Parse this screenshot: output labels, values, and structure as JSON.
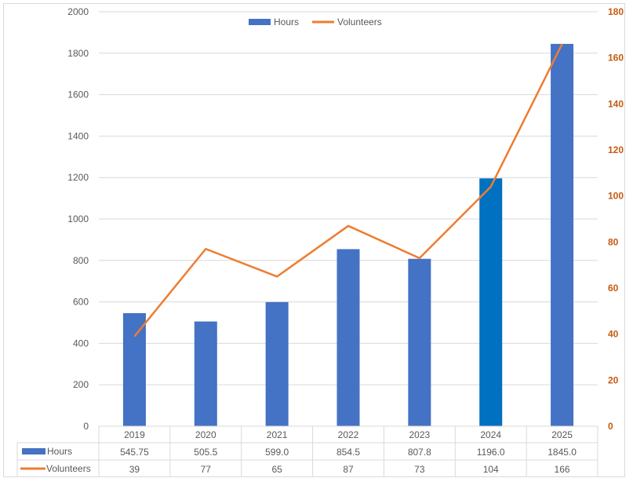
{
  "chart_data": {
    "type": "bar",
    "title": "",
    "categories": [
      "2019",
      "2020",
      "2021",
      "2022",
      "2023",
      "2024",
      "2025"
    ],
    "series": [
      {
        "name": "Hours",
        "type": "bar",
        "axis": "left",
        "color": "#4472C4",
        "highlight": {
          "2024": "#0070C0"
        },
        "values": [
          545.75,
          505.5,
          599.0,
          854.5,
          807.8,
          1196.0,
          1845.0
        ],
        "labels": [
          "545.75",
          "505.5",
          "599.0",
          "854.5",
          "807.8",
          "1196.0",
          "1845.0"
        ]
      },
      {
        "name": "Volunteers",
        "type": "line",
        "axis": "right",
        "color": "#ED7D31",
        "values": [
          39,
          77,
          65,
          87,
          73,
          104,
          166
        ],
        "labels": [
          "39",
          "77",
          "65",
          "87",
          "73",
          "104",
          "166"
        ]
      }
    ],
    "y_left": {
      "min": 0,
      "max": 2000,
      "step": 200,
      "ticks": [
        "0",
        "200",
        "400",
        "600",
        "800",
        "1000",
        "1200",
        "1400",
        "1600",
        "1800",
        "2000"
      ]
    },
    "y_right": {
      "min": 0,
      "max": 180,
      "step": 20,
      "ticks": [
        "0",
        "20",
        "40",
        "60",
        "80",
        "100",
        "120",
        "140",
        "160",
        "180"
      ],
      "color": "#C55A11"
    },
    "grid": true,
    "legend": {
      "placement": "top-center",
      "entries": [
        "Hours",
        "Volunteers"
      ]
    },
    "data_table": true
  }
}
